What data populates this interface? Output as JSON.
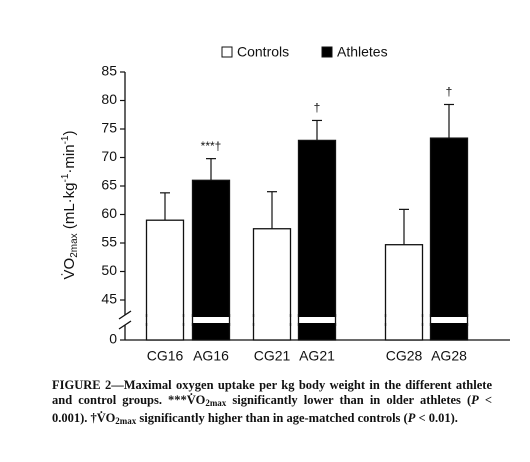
{
  "chart_data": {
    "type": "bar",
    "categories": [
      "CG16",
      "AG16",
      "CG21",
      "AG21",
      "CG28",
      "AG28"
    ],
    "series": [
      {
        "name": "Controls",
        "color": "#ffffff",
        "values": [
          59,
          null,
          57.5,
          null,
          54.7,
          null
        ],
        "errors": [
          4.8,
          null,
          6.5,
          null,
          6.2,
          null
        ]
      },
      {
        "name": "Athletes",
        "color": "#000000",
        "values": [
          null,
          66,
          null,
          73,
          null,
          73.4
        ],
        "errors": [
          null,
          3.8,
          null,
          3.5,
          null,
          5.9
        ]
      }
    ],
    "annotations": [
      null,
      "***†",
      null,
      "†",
      null,
      "†"
    ],
    "ylabel": [
      "V̇O",
      "2max",
      " (mL·kg",
      "-1",
      "·min",
      "-1",
      ")"
    ],
    "ylim": [
      0,
      85
    ],
    "yticks": [
      0,
      45,
      50,
      55,
      60,
      65,
      70,
      75,
      80,
      85
    ],
    "ybreak": [
      0,
      45
    ],
    "legend": "top",
    "caption": [
      "FIGURE 2—Maximal oxygen uptake per kg body weight in the different athlete and control groups. ***V̇O",
      "2max",
      " significantly lower than in older athletes (",
      "P",
      " < 0.001). †V̇O",
      "2max",
      " significantly higher than in age-matched controls (",
      "P",
      " < 0.01)."
    ]
  }
}
